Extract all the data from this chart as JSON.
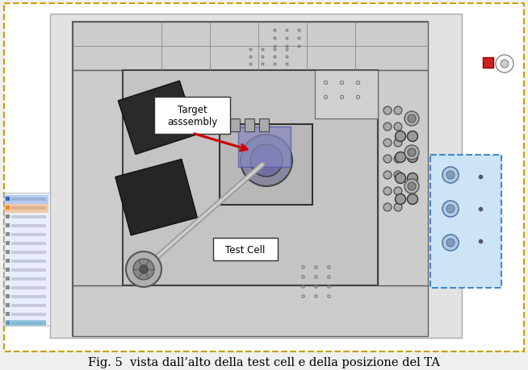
{
  "caption": "Fig. 5  vista dall’alto della test cell e della posizione del TA",
  "caption_fontsize": 10.5,
  "fig_width": 6.54,
  "fig_height": 4.6,
  "bg_color": "#f0f0f0",
  "outer_border_color": "#c8a000",
  "label_target": "Target\nasssembly",
  "label_cell": "Test Cell",
  "arrow_color": "#cc0000",
  "right_panel_color": "#c8e0f0"
}
